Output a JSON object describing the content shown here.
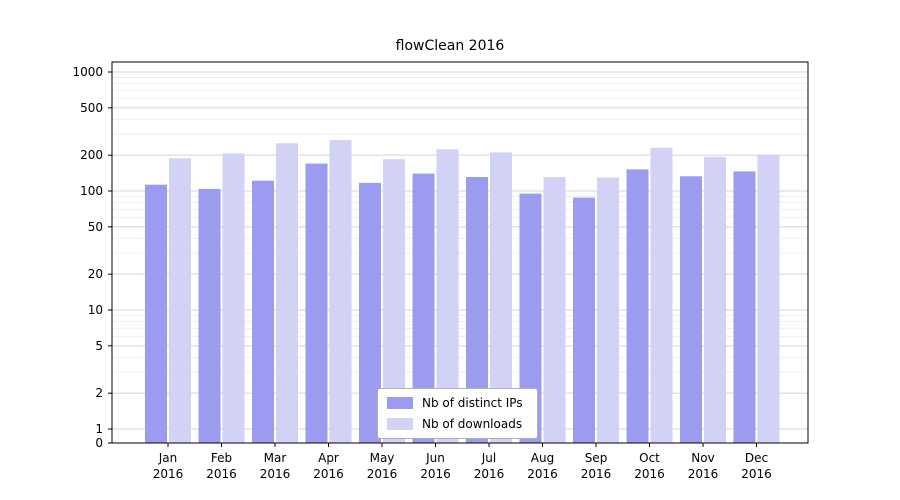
{
  "chart_data": {
    "type": "bar",
    "title": "flowClean 2016",
    "xlabel": "",
    "ylabel": "",
    "yscale": "symlog",
    "grid": true,
    "legend_position": "lower center",
    "ylim": [
      0,
      1200
    ],
    "yticks": [
      0,
      1,
      2,
      5,
      10,
      20,
      50,
      100,
      200,
      500,
      1000
    ],
    "categories": [
      "Jan",
      "Feb",
      "Mar",
      "Apr",
      "May",
      "Jun",
      "Jul",
      "Aug",
      "Sep",
      "Oct",
      "Nov",
      "Dec"
    ],
    "year_label": "2016",
    "series": [
      {
        "name": "Nb of distinct IPs",
        "color": "#9b9bef",
        "values": [
          113,
          104,
          122,
          170,
          117,
          140,
          131,
          95,
          88,
          152,
          133,
          146
        ]
      },
      {
        "name": "Nb of downloads",
        "color": "#d2d2f7",
        "values": [
          188,
          207,
          252,
          268,
          185,
          224,
          211,
          131,
          130,
          231,
          194,
          199
        ]
      }
    ]
  }
}
